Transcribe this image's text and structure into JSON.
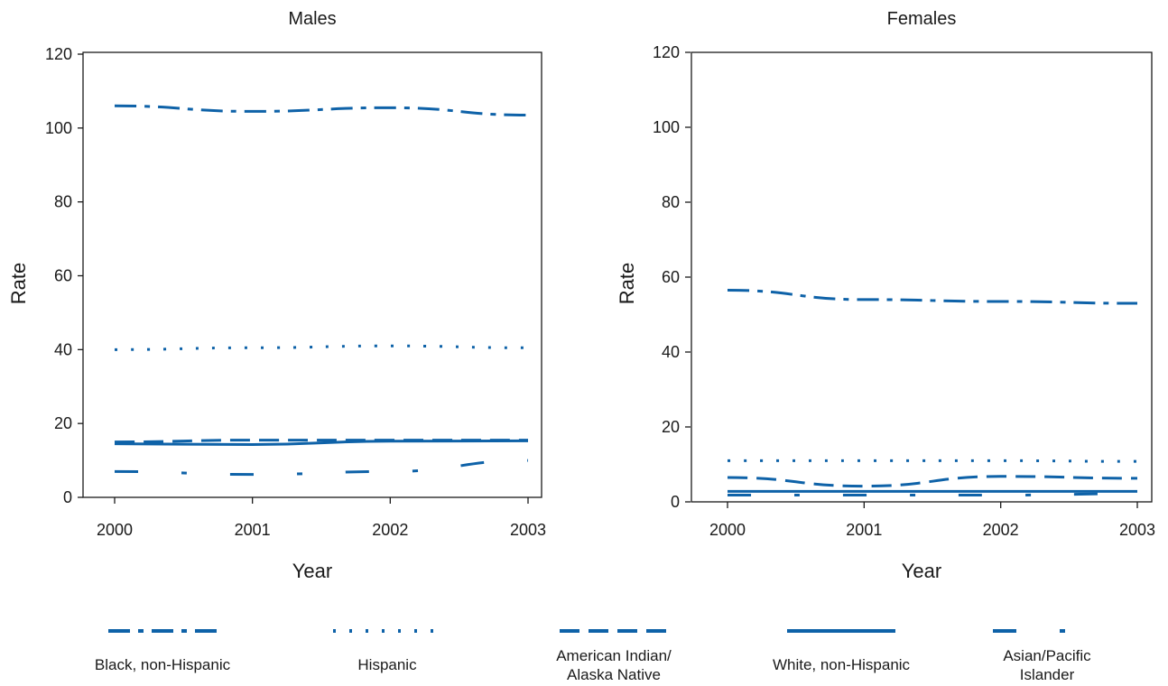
{
  "colors": {
    "series": "#0e62a8",
    "axis": "#1a1a1a",
    "background": "#ffffff"
  },
  "chart_data": [
    {
      "type": "line",
      "title": "Males",
      "xlabel": "Year",
      "ylabel": "Rate",
      "x": [
        2000,
        2001,
        2002,
        2003
      ],
      "xlim": [
        2000,
        2003
      ],
      "ylim": [
        0,
        120
      ],
      "yticks": [
        0,
        20,
        40,
        60,
        80,
        100,
        120
      ],
      "grid": false,
      "series": [
        {
          "name": "Black, non-Hispanic",
          "style": "dash-dot",
          "values": [
            106,
            104.5,
            105.5,
            103.5
          ]
        },
        {
          "name": "Hispanic",
          "style": "dotted",
          "values": [
            40,
            40.5,
            41,
            40.5
          ]
        },
        {
          "name": "American Indian/Alaska Native",
          "style": "dashed",
          "values": [
            15,
            15.5,
            15.5,
            15.5
          ]
        },
        {
          "name": "White, non-Hispanic",
          "style": "solid",
          "values": [
            14.5,
            14.3,
            15.2,
            15.3
          ]
        },
        {
          "name": "Asian/Pacific Islander",
          "style": "long-dash-dot",
          "values": [
            7,
            6.2,
            7,
            10
          ]
        }
      ]
    },
    {
      "type": "line",
      "title": "Females",
      "xlabel": "Year",
      "ylabel": "Rate",
      "x": [
        2000,
        2001,
        2002,
        2003
      ],
      "xlim": [
        2000,
        2003
      ],
      "ylim": [
        0,
        120
      ],
      "yticks": [
        0,
        20,
        40,
        60,
        80,
        100,
        120
      ],
      "grid": false,
      "series": [
        {
          "name": "Black, non-Hispanic",
          "style": "dash-dot",
          "values": [
            56.5,
            54,
            53.5,
            53
          ]
        },
        {
          "name": "Hispanic",
          "style": "dotted",
          "values": [
            11,
            11,
            11,
            10.8
          ]
        },
        {
          "name": "American Indian/Alaska Native",
          "style": "dashed",
          "values": [
            6.5,
            4.2,
            6.8,
            6.3
          ]
        },
        {
          "name": "White, non-Hispanic",
          "style": "solid",
          "values": [
            2.8,
            2.8,
            2.8,
            2.8
          ]
        },
        {
          "name": "Asian/Pacific Islander",
          "style": "long-dash-dot",
          "values": [
            1.8,
            1.8,
            1.8,
            2.2
          ]
        }
      ]
    }
  ],
  "legend": {
    "placement": "bottom",
    "items": [
      {
        "style": "dash-dot",
        "lines": [
          "Black, non-Hispanic"
        ]
      },
      {
        "style": "dotted",
        "lines": [
          "Hispanic"
        ]
      },
      {
        "style": "dashed",
        "lines": [
          "American Indian/",
          "Alaska Native"
        ]
      },
      {
        "style": "solid",
        "lines": [
          "White, non-Hispanic"
        ]
      },
      {
        "style": "long-dash-dot",
        "lines": [
          "Asian/Pacific",
          "Islander"
        ]
      }
    ]
  }
}
